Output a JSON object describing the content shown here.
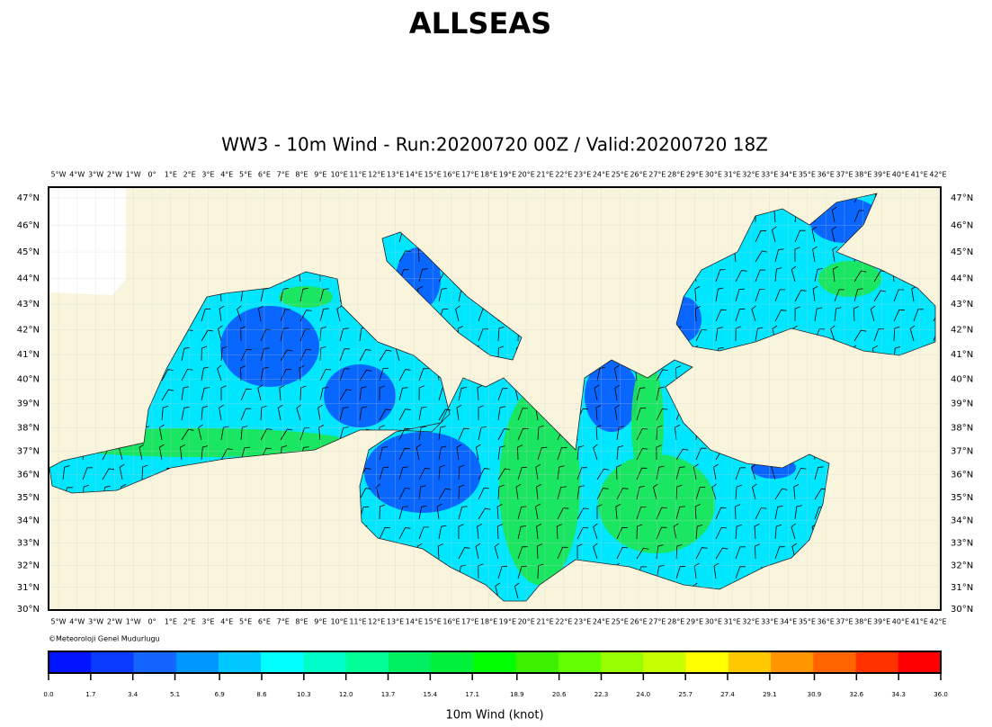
{
  "header": {
    "title": "ALLSEAS"
  },
  "map": {
    "subtitle": "WW3 - 10m Wind - Run:20200720 00Z / Valid:20200720 18Z",
    "lon_labels": [
      "5°W",
      "4°W",
      "3°W",
      "2°W",
      "1°W",
      "0°",
      "1°E",
      "2°E",
      "3°E",
      "4°E",
      "5°E",
      "6°E",
      "7°E",
      "8°E",
      "9°E",
      "10°E",
      "11°E",
      "12°E",
      "13°E",
      "14°E",
      "15°E",
      "16°E",
      "17°E",
      "18°E",
      "19°E",
      "20°E",
      "21°E",
      "22°E",
      "23°E",
      "24°E",
      "25°E",
      "26°E",
      "27°E",
      "28°E",
      "29°E",
      "30°E",
      "31°E",
      "32°E",
      "33°E",
      "34°E",
      "35°E",
      "36°E",
      "37°E",
      "38°E",
      "39°E",
      "40°E",
      "41°E",
      "42°E"
    ],
    "lat_labels": [
      "47°N",
      "46°N",
      "45°N",
      "44°N",
      "43°N",
      "42°N",
      "41°N",
      "40°N",
      "39°N",
      "38°N",
      "37°N",
      "36°N",
      "35°N",
      "34°N",
      "33°N",
      "32°N",
      "31°N",
      "30°N"
    ],
    "credit": "©Meteoroloji Genel Mudurlugu"
  },
  "colorbar": {
    "range": [
      0,
      36
    ],
    "ticks": [
      {
        "value": 0,
        "label": "0.0"
      },
      1.7,
      3.4,
      5.1,
      6.9,
      8.6,
      10.3,
      {
        "value": 12,
        "label": "12.0"
      },
      13.7,
      15.4,
      17.1,
      18.9,
      20.6,
      22.3,
      {
        "value": 24,
        "label": "24.0"
      },
      25.7,
      27.4,
      29.1,
      30.9,
      32.6,
      34.3,
      {
        "value": 36,
        "label": "36.0"
      }
    ],
    "colors": [
      "#0014ff",
      "#0a3cff",
      "#1464ff",
      "#0096ff",
      "#00c8ff",
      "#00ffff",
      "#00ffc8",
      "#00ff96",
      "#00f064",
      "#00f03c",
      "#00ff00",
      "#3cf000",
      "#64ff00",
      "#96ff00",
      "#c8ff00",
      "#ffff00",
      "#ffc800",
      "#ff9600",
      "#ff6400",
      "#ff3200",
      "#ff0000"
    ],
    "label": "10m Wind (knot)"
  }
}
